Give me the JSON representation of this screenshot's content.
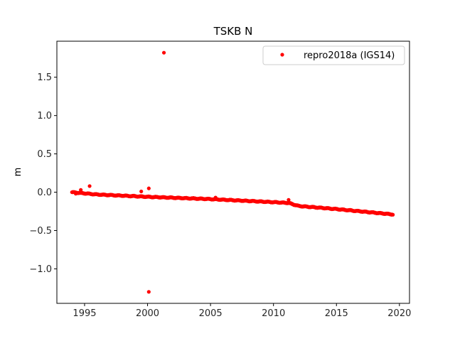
{
  "chart_data": {
    "type": "scatter",
    "title": "TSKB N",
    "xlabel": "",
    "ylabel": "m",
    "xlim": [
      1992.8,
      2020.8
    ],
    "ylim": [
      -1.45,
      1.97
    ],
    "xticks": [
      1995,
      2000,
      2005,
      2010,
      2015,
      2020
    ],
    "yticks": [
      -1.0,
      -0.5,
      0.0,
      0.5,
      1.0,
      1.5
    ],
    "ytick_labels": [
      "−1.0",
      "−0.5",
      "0.0",
      "0.5",
      "1.0",
      "1.5"
    ],
    "grid": false,
    "legend_position": "upper right",
    "series": [
      {
        "name": "repro2018a (IGS14)",
        "color": "#ff0000",
        "marker": "circle",
        "trend": [
          [
            1994.0,
            0.0
          ],
          [
            1996.0,
            -0.03
          ],
          [
            2000.0,
            -0.06
          ],
          [
            2005.0,
            -0.09
          ],
          [
            2010.0,
            -0.13
          ],
          [
            2011.2,
            -0.14
          ],
          [
            2012.0,
            -0.18
          ],
          [
            2015.0,
            -0.22
          ],
          [
            2019.5,
            -0.29
          ]
        ],
        "outliers": [
          [
            1994.7,
            0.03
          ],
          [
            1995.4,
            0.08
          ],
          [
            1999.5,
            0.01
          ],
          [
            2000.1,
            0.05
          ],
          [
            2001.3,
            1.82
          ],
          [
            2000.1,
            -1.3
          ],
          [
            2005.4,
            -0.07
          ],
          [
            2011.2,
            -0.1
          ],
          [
            1994.3,
            -0.02
          ]
        ]
      }
    ]
  }
}
